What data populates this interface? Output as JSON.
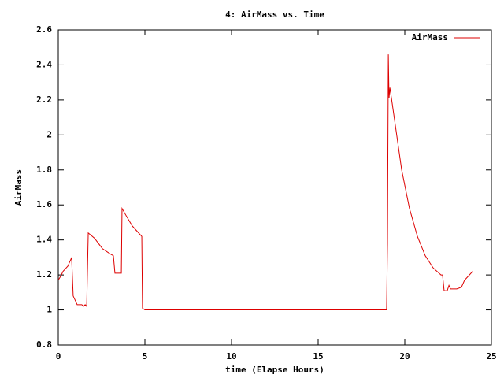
{
  "chart_data": {
    "type": "line",
    "title": "4: AirMass vs. Time",
    "xlabel": "time (Elapse Hours)",
    "ylabel": "AirMass",
    "x": [
      0,
      0.18,
      0.27,
      0.55,
      0.73,
      0.77,
      0.86,
      1.0,
      1.09,
      1.36,
      1.45,
      1.55,
      1.64,
      1.73,
      2.09,
      2.55,
      3.0,
      3.18,
      3.27,
      3.64,
      3.68,
      3.91,
      4.27,
      4.73,
      4.82,
      4.86,
      5.0,
      18.95,
      19.0,
      19.05,
      19.09,
      19.14,
      19.23,
      19.36,
      19.59,
      19.82,
      20.27,
      20.73,
      21.18,
      21.64,
      22.09,
      22.18,
      22.27,
      22.45,
      22.55,
      22.64,
      23.0,
      23.27,
      23.45,
      23.73,
      23.91
    ],
    "series": [
      {
        "name": "AirMass",
        "color": "#dd0000",
        "values": [
          1.17,
          1.2,
          1.22,
          1.25,
          1.29,
          1.3,
          1.08,
          1.05,
          1.03,
          1.03,
          1.02,
          1.03,
          1.02,
          1.44,
          1.41,
          1.35,
          1.32,
          1.31,
          1.21,
          1.21,
          1.58,
          1.54,
          1.48,
          1.43,
          1.42,
          1.01,
          1.0,
          1.0,
          1.38,
          2.46,
          2.21,
          2.27,
          2.21,
          2.12,
          1.96,
          1.8,
          1.58,
          1.42,
          1.31,
          1.24,
          1.2,
          1.2,
          1.11,
          1.11,
          1.14,
          1.12,
          1.12,
          1.13,
          1.17,
          1.2,
          1.22
        ]
      }
    ],
    "xlim": [
      0,
      25
    ],
    "xticks": [
      0,
      5,
      10,
      15,
      20,
      25
    ],
    "ylim": [
      0.8,
      2.6
    ],
    "yticks": [
      0.8,
      1,
      1.2,
      1.4,
      1.6,
      1.8,
      2,
      2.2,
      2.4,
      2.6
    ],
    "grid": false,
    "legend": "top-right"
  }
}
